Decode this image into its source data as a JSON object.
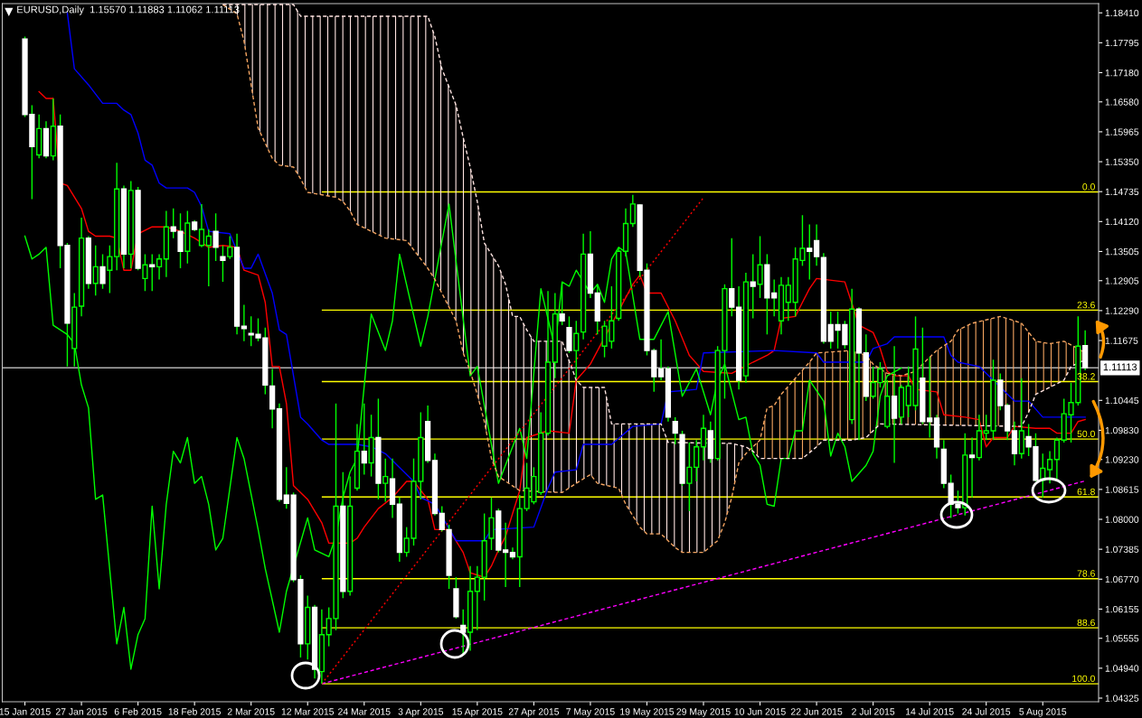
{
  "chart_data": {
    "type": "candlestick",
    "title": "EURUSD,Daily  1.15570 1.11883 1.11062 1.11113",
    "categories": [
      "15 Jan 2015",
      null,
      null,
      null,
      null,
      null,
      null,
      null,
      "27 Jan 2015",
      null,
      null,
      null,
      null,
      null,
      null,
      null,
      "6 Feb 2015",
      null,
      null,
      null,
      null,
      null,
      null,
      null,
      "18 Feb 2015",
      null,
      null,
      null,
      null,
      null,
      null,
      null,
      "2 Mar 2015",
      null,
      null,
      null,
      null,
      null,
      null,
      null,
      "12 Mar 2015",
      null,
      null,
      null,
      null,
      null,
      null,
      null,
      "24 Mar 2015",
      null,
      null,
      null,
      null,
      null,
      null,
      null,
      "3 Apr 2015",
      null,
      null,
      null,
      null,
      null,
      null,
      null,
      "15 Apr 2015",
      null,
      null,
      null,
      null,
      null,
      null,
      null,
      "27 Apr 2015",
      null,
      null,
      null,
      null,
      null,
      null,
      null,
      "7 May 2015",
      null,
      null,
      null,
      null,
      null,
      null,
      null,
      "19 May 2015",
      null,
      null,
      null,
      null,
      null,
      null,
      null,
      "29 May 2015",
      null,
      null,
      null,
      null,
      null,
      null,
      null,
      "10 Jun 2015",
      null,
      null,
      null,
      null,
      null,
      null,
      null,
      "22 Jun 2015",
      null,
      null,
      null,
      null,
      null,
      null,
      null,
      "2 Jul 2015",
      null,
      null,
      null,
      null,
      null,
      null,
      null,
      "14 Jul 2015",
      null,
      null,
      null,
      null,
      null,
      null,
      null,
      "24 Jul 2015",
      null,
      null,
      null,
      null,
      null,
      null,
      null,
      "5 Aug 2015",
      null,
      null,
      null,
      null,
      null,
      null
    ],
    "ohlc": [
      [
        1.1787,
        1.1792,
        1.1627,
        1.1632
      ],
      [
        1.1632,
        1.1651,
        1.1458,
        1.1566
      ],
      [
        1.1549,
        1.1632,
        1.1542,
        1.1603
      ],
      [
        1.1603,
        1.1618,
        1.1542,
        1.1547
      ],
      [
        1.1547,
        1.1665,
        1.1538,
        1.1608
      ],
      [
        1.1608,
        1.1632,
        1.1316,
        1.1363
      ],
      [
        1.1363,
        1.1368,
        1.1114,
        1.1203
      ],
      [
        1.1151,
        1.1265,
        1.1114,
        1.1236
      ],
      [
        1.1238,
        1.142,
        1.1217,
        1.1378
      ],
      [
        1.1378,
        1.1382,
        1.1274,
        1.1285
      ],
      [
        1.1285,
        1.1363,
        1.126,
        1.1319
      ],
      [
        1.1319,
        1.1345,
        1.1274,
        1.1285
      ],
      [
        1.1312,
        1.1363,
        1.1265,
        1.134
      ],
      [
        1.134,
        1.1533,
        1.1312,
        1.1479
      ],
      [
        1.1479,
        1.1486,
        1.1316,
        1.1345
      ],
      [
        1.1345,
        1.1495,
        1.1316,
        1.1476
      ],
      [
        1.1476,
        1.1483,
        1.1312,
        1.1316
      ],
      [
        1.1295,
        1.1345,
        1.1269,
        1.1323
      ],
      [
        1.1323,
        1.1345,
        1.1269,
        1.1319
      ],
      [
        1.1319,
        1.1345,
        1.1293,
        1.1335
      ],
      [
        1.1335,
        1.1434,
        1.1298,
        1.1401
      ],
      [
        1.1401,
        1.1439,
        1.1378,
        1.1392
      ],
      [
        1.1392,
        1.1429,
        1.1316,
        1.1351
      ],
      [
        1.1351,
        1.1434,
        1.1326,
        1.1409
      ],
      [
        1.1411,
        1.1415,
        1.1392,
        1.1396
      ],
      [
        1.1363,
        1.1448,
        1.1359,
        1.1396
      ],
      [
        1.1363,
        1.1396,
        1.1279,
        1.1382
      ],
      [
        1.1392,
        1.1429,
        1.1331,
        1.1359
      ],
      [
        1.134,
        1.1363,
        1.1288,
        1.1332
      ],
      [
        1.134,
        1.1382,
        1.1335,
        1.1359
      ],
      [
        1.1359,
        1.1387,
        1.118,
        1.1197
      ],
      [
        1.1197,
        1.1241,
        1.1166,
        1.1192
      ],
      [
        1.1182,
        1.1217,
        1.1156,
        1.1179
      ],
      [
        1.118,
        1.1213,
        1.1166,
        1.1173
      ],
      [
        1.1173,
        1.1194,
        1.1057,
        1.1076
      ],
      [
        1.1074,
        1.1109,
        1.0987,
        1.1027
      ],
      [
        1.1027,
        1.1038,
        1.0836,
        1.0841
      ],
      [
        1.085,
        1.0907,
        1.0822,
        1.0833
      ],
      [
        1.085,
        1.0855,
        1.0671,
        1.0676
      ],
      [
        1.0676,
        1.0685,
        1.0516,
        1.0544
      ],
      [
        1.0544,
        1.0643,
        1.0512,
        1.0619
      ],
      [
        1.0619,
        1.0624,
        1.0473,
        1.0492
      ],
      [
        1.0487,
        1.0615,
        1.0462,
        1.0563
      ],
      [
        1.0563,
        1.0619,
        1.0539,
        1.0596
      ],
      [
        1.0596,
        1.1038,
        1.0572,
        1.0827
      ],
      [
        1.0827,
        1.0897,
        1.0638,
        1.0652
      ],
      [
        1.0652,
        1.0888,
        1.0643,
        1.0827
      ],
      [
        1.0864,
        1.0996,
        1.0859,
        1.094
      ],
      [
        1.094,
        1.1038,
        1.0892,
        1.0916
      ],
      [
        1.0916,
        1.1015,
        1.0888,
        1.0968
      ],
      [
        1.0968,
        1.1048,
        1.0841,
        1.0874
      ],
      [
        1.0874,
        1.0925,
        1.0836,
        1.0888
      ],
      [
        1.0883,
        1.0925,
        1.0803,
        1.0831
      ],
      [
        1.0831,
        1.0845,
        1.0713,
        1.0732
      ],
      [
        1.0732,
        1.0784,
        1.0723,
        1.0761
      ],
      [
        1.0761,
        1.0925,
        1.0746,
        1.0878
      ],
      [
        1.0878,
        1.102,
        1.0841,
        1.0968
      ],
      [
        1.1001,
        1.1034,
        1.0916,
        1.0921
      ],
      [
        1.0921,
        1.0935,
        1.0808,
        1.0812
      ],
      [
        1.0812,
        1.0827,
        1.0775,
        1.0779
      ],
      [
        1.0779,
        1.0789,
        1.0657,
        1.0685
      ],
      [
        1.0657,
        1.0681,
        1.0596,
        1.06
      ],
      [
        1.0582,
        1.0615,
        1.052,
        1.0568
      ],
      [
        1.0568,
        1.0704,
        1.053,
        1.0652
      ],
      [
        1.0652,
        1.0704,
        1.0572,
        1.0681
      ],
      [
        1.0681,
        1.0812,
        1.0633,
        1.0756
      ],
      [
        1.0761,
        1.0845,
        1.0737,
        1.0803
      ],
      [
        1.0817,
        1.0822,
        1.0732,
        1.0737
      ],
      [
        1.0737,
        1.0793,
        1.0661,
        1.0732
      ],
      [
        1.0732,
        1.0742,
        1.0718,
        1.0723
      ],
      [
        1.0723,
        1.085,
        1.0661,
        1.0822
      ],
      [
        1.0822,
        1.0916,
        1.0817,
        1.0864
      ],
      [
        1.0836,
        1.0907,
        1.0831,
        1.0888
      ],
      [
        1.0855,
        1.102,
        1.085,
        1.0977
      ],
      [
        1.0977,
        1.1269,
        1.0972,
        1.1123
      ],
      [
        1.1123,
        1.1265,
        1.109,
        1.1222
      ],
      [
        1.1222,
        1.1288,
        1.1199,
        1.1208
      ],
      [
        1.1194,
        1.1217,
        1.1142,
        1.1147
      ],
      [
        1.1147,
        1.1208,
        1.109,
        1.1182
      ],
      [
        1.1185,
        1.1387,
        1.117,
        1.1345
      ],
      [
        1.1345,
        1.1392,
        1.1255,
        1.1265
      ],
      [
        1.1265,
        1.1283,
        1.118,
        1.1208
      ],
      [
        1.1156,
        1.1208,
        1.1133,
        1.1197
      ],
      [
        1.1166,
        1.1279,
        1.1151,
        1.1208
      ],
      [
        1.1213,
        1.1359,
        1.1208,
        1.1351
      ],
      [
        1.1351,
        1.1439,
        1.134,
        1.1408
      ],
      [
        1.1408,
        1.1467,
        1.1401,
        1.1448
      ],
      [
        1.1446,
        1.1448,
        1.1298,
        1.1312
      ],
      [
        1.1312,
        1.1326,
        1.1137,
        1.1147
      ],
      [
        1.1147,
        1.1151,
        1.1062,
        1.1093
      ],
      [
        1.1109,
        1.117,
        1.1086,
        1.1093
      ],
      [
        1.1109,
        1.1114,
        1.1001,
        1.101
      ],
      [
        1.1001,
        1.101,
        1.0954,
        1.0977
      ],
      [
        1.0974,
        1.0982,
        1.0869,
        1.0874
      ],
      [
        1.0874,
        1.0958,
        1.0817,
        1.0907
      ],
      [
        1.0907,
        1.0963,
        1.0878,
        1.0949
      ],
      [
        1.0949,
        1.1015,
        1.0921,
        1.0987
      ],
      [
        1.0982,
        1.1001,
        1.0916,
        1.0925
      ],
      [
        1.0925,
        1.1156,
        1.0921,
        1.1147
      ],
      [
        1.1147,
        1.1283,
        1.1048,
        1.1274
      ],
      [
        1.1274,
        1.1378,
        1.1217,
        1.1236
      ],
      [
        1.1236,
        1.1279,
        1.1067,
        1.1086
      ],
      [
        1.1095,
        1.1307,
        1.1081,
        1.1288
      ],
      [
        1.1288,
        1.1345,
        1.1213,
        1.1279
      ],
      [
        1.1283,
        1.1382,
        1.1255,
        1.1323
      ],
      [
        1.1323,
        1.1345,
        1.118,
        1.1255
      ],
      [
        1.1265,
        1.1293,
        1.1217,
        1.1255
      ],
      [
        1.1208,
        1.1298,
        1.118,
        1.1281
      ],
      [
        1.1246,
        1.1298,
        1.1208,
        1.1281
      ],
      [
        1.1246,
        1.1359,
        1.1217,
        1.1335
      ],
      [
        1.1332,
        1.1425,
        1.1321,
        1.1357
      ],
      [
        1.1357,
        1.1406,
        1.1293,
        1.1351
      ],
      [
        1.1373,
        1.1406,
        1.1321,
        1.134
      ],
      [
        1.1338,
        1.1347,
        1.1161,
        1.1166
      ],
      [
        1.12,
        1.1227,
        1.1151,
        1.1166
      ],
      [
        1.12,
        1.1227,
        1.1151,
        1.1189
      ],
      [
        1.12,
        1.1208,
        1.1151,
        1.1159
      ],
      [
        1.1005,
        1.1274,
        1.0996,
        1.1232
      ],
      [
        1.1232,
        1.1236,
        1.0963,
        1.1142
      ],
      [
        1.1142,
        1.118,
        1.1043,
        1.1053
      ],
      [
        1.1053,
        1.1114,
        1.1048,
        1.1081
      ],
      [
        1.1081,
        1.1123,
        1.1071,
        1.1109
      ],
      [
        1.0991,
        1.1086,
        1.0987,
        1.1053
      ],
      [
        1.1053,
        1.1156,
        1.0916,
        1.1008
      ],
      [
        1.101,
        1.1076,
        1.0996,
        1.1071
      ],
      [
        1.1034,
        1.1114,
        1.101,
        1.1074
      ],
      [
        1.1034,
        1.1217,
        1.1024,
        1.115
      ],
      [
        1.109,
        1.1194,
        1.0996,
        1.1001
      ],
      [
        1.1008,
        1.1133,
        1.0968,
        1.1001
      ],
      [
        1.1008,
        1.1015,
        1.0925,
        1.0949
      ],
      [
        1.0944,
        1.0963,
        1.0864,
        1.0874
      ],
      [
        1.0874,
        1.0892,
        1.0803,
        1.0831
      ],
      [
        1.0831,
        1.0859,
        1.0812,
        1.0824
      ],
      [
        1.0824,
        1.0977,
        1.0808,
        1.0932
      ],
      [
        1.0932,
        1.0968,
        1.0845,
        1.0927
      ],
      [
        1.0927,
        1.1015,
        1.0921,
        1.0982
      ],
      [
        1.0977,
        1.1015,
        1.0963,
        1.0982
      ],
      [
        1.0982,
        1.1128,
        1.0963,
        1.1086
      ],
      [
        1.1086,
        1.11,
        1.1024,
        1.1034
      ],
      [
        1.1034,
        1.1038,
        1.0963,
        1.0982
      ],
      [
        1.0982,
        1.1001,
        1.0911,
        1.0935
      ],
      [
        1.0935,
        1.109,
        1.0925,
        1.0982
      ],
      [
        1.097,
        1.0996,
        1.093,
        1.0949
      ],
      [
        1.0949,
        1.0977,
        1.0878,
        1.088
      ],
      [
        1.088,
        1.0935,
        1.0845,
        1.0905
      ],
      [
        1.0902,
        1.094,
        1.0874,
        1.0923
      ],
      [
        1.0923,
        1.0968,
        1.0883,
        1.0963
      ],
      [
        1.0963,
        1.1048,
        1.0958,
        1.1017
      ],
      [
        1.1015,
        1.1081,
        1.0958,
        1.104
      ],
      [
        1.104,
        1.1217,
        1.1034,
        1.1156
      ],
      [
        1.1157,
        1.11883,
        1.11062,
        1.11113
      ]
    ],
    "ylim": [
      1.0425,
      1.186
    ],
    "yticks": [
      {
        "value": 1.1841,
        "label": "1.18410"
      },
      {
        "value": 1.17795,
        "label": "1.17795"
      },
      {
        "value": 1.1718,
        "label": "1.17180"
      },
      {
        "value": 1.1658,
        "label": "1.16580"
      },
      {
        "value": 1.15965,
        "label": "1.15965"
      },
      {
        "value": 1.1535,
        "label": "1.15350"
      },
      {
        "value": 1.14735,
        "label": "1.14735"
      },
      {
        "value": 1.1412,
        "label": "1.14120"
      },
      {
        "value": 1.13505,
        "label": "1.13505"
      },
      {
        "value": 1.12905,
        "label": "1.12905"
      },
      {
        "value": 1.1229,
        "label": "1.12290"
      },
      {
        "value": 1.11675,
        "label": "1.11675"
      },
      {
        "value": 1.10445,
        "label": "1.10445"
      },
      {
        "value": 1.0983,
        "label": "1.09830"
      },
      {
        "value": 1.0923,
        "label": "1.09230"
      },
      {
        "value": 1.08615,
        "label": "1.08615"
      },
      {
        "value": 1.08,
        "label": "1.08000"
      },
      {
        "value": 1.07385,
        "label": "1.07385"
      },
      {
        "value": 1.0677,
        "label": "1.06770"
      },
      {
        "value": 1.06155,
        "label": "1.06155"
      },
      {
        "value": 1.05555,
        "label": "1.05555"
      },
      {
        "value": 1.0494,
        "label": "1.04940"
      },
      {
        "value": 1.04325,
        "label": "1.04325"
      }
    ],
    "series": [
      {
        "type": "line",
        "color": "#ff0000",
        "values": [
          null,
          null,
          1.1679,
          1.1665,
          1.1665,
          1.1491,
          1.1486,
          null,
          1.1439,
          1.1392,
          1.1382,
          null,
          1.1382,
          1.1378,
          1.1312,
          1.1312,
          1.1387,
          null,
          1.1401,
          null,
          1.1401,
          null,
          1.1392,
          null,
          1.1378,
          null,
          1.1359,
          null,
          1.1363,
          null,
          1.1359,
          1.1312,
          null,
          1.1302,
          1.1246,
          1.1114,
          1.1114,
          1.1038,
          1.0869,
          null,
          1.0841,
          null,
          1.0793,
          1.0751,
          null,
          null,
          1.0751,
          1.0761,
          1.0784,
          1.0803,
          1.0822,
          null,
          1.0845,
          null,
          1.0878,
          1.0878,
          null,
          1.0841,
          1.0779,
          null,
          1.0779,
          null,
          1.0732,
          1.069,
          null,
          1.0681,
          1.0704,
          1.0737,
          1.0765,
          1.0812,
          1.0859,
          1.0968,
          null,
          null,
          1.0982,
          null,
          null,
          1.0977,
          1.1086,
          null,
          1.1119,
          null,
          null,
          null,
          null,
          null,
          1.1283,
          1.1302,
          1.1265,
          null,
          1.1265,
          null,
          1.1208,
          null,
          1.1137,
          null,
          1.1104,
          null,
          null,
          null,
          1.11,
          null,
          null,
          1.1123,
          null,
          1.1137,
          1.1147,
          1.1213,
          null,
          1.1217,
          1.1246,
          1.1274,
          1.1295,
          null,
          null,
          null,
          1.1288,
          null,
          1.1199,
          null,
          1.1184,
          1.1151,
          1.1104,
          1.1095,
          null,
          1.1095,
          1.1067,
          null,
          null,
          1.1062,
          1.1015,
          null,
          null,
          1.101,
          null,
          1.1005,
          1.0949,
          1.0968,
          null,
          1.0968,
          1.0991,
          null,
          null,
          1.0987,
          null,
          1.0987,
          1.0977,
          null,
          1.0977,
          1.1001,
          1.1005
        ]
      },
      {
        "type": "line",
        "color": "#0000ff",
        "values": [
          null,
          null,
          null,
          null,
          null,
          null,
          1.1841,
          1.1726,
          null,
          1.1693,
          null,
          1.1655,
          null,
          1.1655,
          1.1641,
          1.1632,
          1.1594,
          1.1538,
          1.1528,
          1.1491,
          1.1481,
          null,
          null,
          1.1481,
          1.1472,
          1.1443,
          1.1392,
          null,
          null,
          1.1387,
          null,
          1.1316,
          1.1316,
          1.1345,
          null,
          1.1265,
          1.1189,
          1.118,
          null,
          1.101,
          1.0996,
          null,
          1.0963,
          1.0954,
          null,
          null,
          null,
          1.0954,
          null,
          1.0949,
          null,
          1.0935,
          null,
          null,
          null,
          1.0878,
          1.0845,
          null,
          1.0831,
          null,
          null,
          1.0756,
          null,
          null,
          null,
          1.0756,
          1.0779,
          null,
          null,
          null,
          null,
          null,
          1.0784,
          null,
          1.0864,
          1.0897,
          null,
          null,
          1.0902,
          1.0954,
          null,
          null,
          null,
          1.0954,
          null,
          null,
          1.0991,
          null,
          null,
          null,
          1.0996,
          1.1062,
          null,
          null,
          null,
          1.1067,
          1.1142,
          null,
          null,
          null,
          null,
          null,
          null,
          null,
          null,
          null,
          1.1147,
          null,
          null,
          null,
          null,
          null,
          1.1142,
          1.1123,
          null,
          null,
          null,
          null,
          null,
          1.1123,
          1.1151,
          null,
          1.1161,
          1.1175,
          null,
          null,
          null,
          null,
          null,
          null,
          1.1175,
          1.1137,
          1.1123,
          null,
          null,
          1.1114,
          null,
          null,
          null,
          null,
          1.1043,
          null,
          1.1043,
          null,
          1.101,
          null,
          null,
          null,
          null,
          null,
          1.101
        ]
      },
      {
        "type": "line",
        "color": "#00ff00",
        "values": [
          1.1382,
          1.1335,
          1.1345,
          1.1359,
          1.1199,
          null,
          1.118,
          1.1161,
          1.1076,
          1.1029,
          1.0841,
          1.085,
          null,
          1.0544,
          1.0619,
          1.0492,
          1.0563,
          1.0596,
          1.0827,
          1.0657,
          1.0831,
          1.094,
          1.0916,
          1.0968,
          1.0874,
          1.0888,
          1.0831,
          1.0737,
          1.0761,
          null,
          1.0968,
          1.0925,
          null,
          1.0779,
          1.0699,
          null,
          1.0568,
          1.0652,
          null,
          null,
          1.0803,
          1.0737,
          null,
          1.0723,
          1.0765,
          1.0845,
          1.0897,
          1.0925,
          null,
          1.1222,
          null,
          1.1147,
          1.1208,
          1.1345,
          null,
          null,
          1.1156,
          1.1217,
          null,
          null,
          1.1448,
          null,
          null,
          1.1095,
          1.1114,
          null,
          null,
          1.0874,
          null,
          null,
          1.0987,
          1.0925,
          null,
          1.1274,
          null,
          1.1151,
          1.1288,
          1.1279,
          1.1312,
          null,
          1.1265,
          1.1283,
          1.1246,
          1.1335,
          1.1359,
          1.1349,
          null,
          1.117,
          null,
          1.117,
          null,
          1.1227,
          null,
          1.1053,
          null,
          1.1109,
          null,
          1.1015,
          1.1086,
          1.1119,
          null,
          1.1005,
          1.101,
          1.0935,
          1.0911,
          1.0831,
          1.0827,
          1.0925,
          1.0925,
          1.0982,
          1.0982,
          1.1086,
          null,
          1.1043,
          1.093,
          1.0977,
          1.0949,
          1.0878,
          null,
          1.0911,
          1.094,
          1.1053,
          1.1095,
          null,
          1.1111,
          null,
          null,
          null,
          null,
          null,
          null,
          null,
          null,
          null,
          null,
          null,
          null,
          null,
          null,
          null,
          null,
          null,
          null,
          null,
          null,
          null,
          null,
          null,
          null,
          null,
          null
        ]
      },
      {
        "type": "line",
        "color": "#f4a460",
        "line_style": "dashed",
        "values": [
          null,
          null,
          null,
          null,
          null,
          null,
          null,
          null,
          null,
          null,
          null,
          null,
          null,
          null,
          null,
          null,
          null,
          null,
          null,
          null,
          null,
          null,
          null,
          null,
          null,
          null,
          null,
          null,
          1.1858,
          null,
          1.1839,
          1.1783,
          1.1693,
          1.1604,
          null,
          1.1542,
          1.1528,
          null,
          1.1524,
          1.15,
          1.1472,
          null,
          null,
          null,
          1.1462,
          1.1453,
          1.1434,
          1.1406,
          null,
          1.1392,
          null,
          1.1378,
          null,
          null,
          1.1373,
          null,
          null,
          1.1316,
          1.1293,
          null,
          null,
          1.1208,
          1.1142,
          1.1104,
          1.1057,
          1.1001,
          1.0925,
          1.0888,
          null,
          null,
          1.0859,
          null,
          null,
          null,
          null,
          null,
          1.0855,
          null,
          1.0874,
          null,
          1.0892,
          1.0874,
          null,
          null,
          1.0864,
          1.0831,
          null,
          1.0784,
          1.077,
          null,
          1.077,
          null,
          1.0742,
          1.0732,
          null,
          null,
          1.0732,
          null,
          1.0756,
          1.0793,
          1.0845,
          1.0916,
          1.0935,
          1.0949,
          1.0963,
          1.1029,
          1.1034,
          1.1057,
          null,
          1.109,
          null,
          1.1123,
          1.1142,
          null,
          null,
          null,
          null,
          1.1147,
          null,
          1.1137,
          1.1119,
          1.1109,
          1.11,
          null,
          1.1095,
          null,
          1.1104,
          1.1119,
          null,
          1.1147,
          null,
          1.1166,
          1.1189,
          null,
          1.1203,
          null,
          null,
          null,
          1.1217,
          null,
          1.1208,
          1.1203,
          null,
          1.1166,
          null,
          1.1161,
          null,
          1.1166,
          null,
          1.1151,
          1.1142
        ]
      },
      {
        "type": "line",
        "color": "#ffe4e1",
        "line_style": "dashed",
        "values": [
          null,
          null,
          null,
          null,
          null,
          null,
          null,
          null,
          null,
          null,
          null,
          null,
          null,
          null,
          null,
          null,
          null,
          null,
          null,
          null,
          null,
          null,
          null,
          null,
          null,
          null,
          null,
          null,
          1.1858,
          null,
          null,
          null,
          null,
          null,
          null,
          null,
          null,
          null,
          1.1858,
          1.1834,
          null,
          null,
          null,
          null,
          null,
          null,
          null,
          null,
          null,
          null,
          null,
          null,
          null,
          null,
          null,
          null,
          null,
          1.1834,
          1.1792,
          1.1726,
          null,
          1.1651,
          1.1585,
          1.1524,
          1.1453,
          1.1368,
          null,
          1.1321,
          1.1283,
          1.1217,
          1.1217,
          1.1189,
          1.1166,
          null,
          null,
          null,
          1.1166,
          null,
          1.1086,
          1.1071,
          null,
          null,
          1.1071,
          1.0996,
          null,
          null,
          null,
          null,
          null,
          null,
          1.0996,
          1.0958,
          null,
          null,
          null,
          null,
          null,
          null,
          null,
          null,
          1.0956,
          null,
          1.0949,
          1.094,
          1.0925,
          null,
          null,
          null,
          null,
          null,
          1.0925,
          null,
          1.0949,
          1.0963,
          null,
          null,
          null,
          1.0963,
          null,
          1.0968,
          1.0982,
          1.0996,
          null,
          null,
          null,
          null,
          null,
          null,
          null,
          null,
          null,
          null,
          null,
          null,
          null,
          null,
          null,
          null,
          null,
          null,
          null,
          1.0991,
          1.102,
          1.1057,
          null,
          null,
          null,
          1.1086,
          1.1114,
          null,
          1.1128
        ]
      },
      {
        "type": "line",
        "color": "#ff00ff",
        "line_style": "dashed",
        "values": [
          null,
          null,
          null,
          null,
          null,
          null,
          null,
          null,
          null,
          null,
          null,
          null,
          null,
          null,
          null,
          null,
          null,
          null,
          null,
          null,
          null,
          null,
          null,
          null,
          null,
          null,
          null,
          null,
          null,
          null,
          null,
          null,
          null,
          null,
          null,
          null,
          null,
          null,
          null,
          null,
          null,
          null,
          1.0462,
          null,
          null,
          null,
          null,
          null,
          null,
          null,
          null,
          null,
          null,
          null,
          null,
          null,
          null,
          null,
          null,
          null,
          null,
          null,
          null,
          null,
          null,
          null,
          null,
          null,
          null,
          null,
          null,
          null,
          null,
          null,
          null,
          null,
          null,
          null,
          null,
          null,
          null,
          null,
          null,
          null,
          null,
          null,
          null,
          null,
          null,
          null,
          null,
          null,
          null,
          null,
          null,
          null,
          null,
          null,
          null,
          null,
          null,
          null,
          null,
          null,
          null,
          null,
          null,
          null,
          null,
          null,
          null,
          null,
          null,
          null,
          null,
          null,
          null,
          null,
          null,
          null,
          null,
          null,
          null,
          null,
          null,
          null,
          null,
          null,
          null,
          null,
          null,
          null,
          null,
          null,
          null,
          null,
          null,
          null,
          null,
          null,
          null,
          null,
          null,
          null,
          null,
          null,
          null,
          null,
          null,
          null,
          1.0879
        ]
      },
      {
        "type": "line",
        "color": "#ff0000",
        "line_style": "dotted",
        "values": [
          null,
          null,
          null,
          null,
          null,
          null,
          null,
          null,
          null,
          null,
          null,
          null,
          null,
          null,
          null,
          null,
          null,
          null,
          null,
          null,
          null,
          null,
          null,
          null,
          null,
          null,
          null,
          null,
          null,
          null,
          null,
          null,
          null,
          null,
          null,
          null,
          null,
          null,
          null,
          null,
          null,
          null,
          1.0462,
          null,
          null,
          null,
          null,
          null,
          null,
          null,
          null,
          null,
          null,
          null,
          null,
          null,
          null,
          null,
          null,
          null,
          null,
          null,
          null,
          null,
          null,
          null,
          null,
          null,
          null,
          null,
          null,
          null,
          null,
          null,
          null,
          null,
          null,
          null,
          null,
          null,
          null,
          null,
          null,
          null,
          null,
          null,
          null,
          null,
          null,
          null,
          null,
          null,
          null,
          null,
          null,
          null,
          1.1461,
          null,
          null,
          null,
          null,
          null,
          null,
          null,
          null,
          null,
          null,
          null,
          null,
          null,
          null,
          null,
          null,
          null,
          null,
          null,
          null,
          null,
          null,
          null,
          null,
          null,
          null,
          null,
          null,
          null,
          null,
          null,
          null,
          null,
          null,
          null,
          null,
          null,
          null,
          null,
          null,
          null,
          null,
          null,
          null,
          null,
          null,
          null,
          null,
          null,
          null,
          null,
          null,
          null,
          null
        ]
      }
    ],
    "ref_lines": [
      {
        "axis": "y",
        "value": 1.1473,
        "color": "#ffff00"
      },
      {
        "axis": "y",
        "value": 1.123,
        "color": "#ffff00"
      },
      {
        "axis": "y",
        "value": 1.1083,
        "color": "#ffff00"
      },
      {
        "axis": "y",
        "value": 1.0965,
        "color": "#ffff00"
      },
      {
        "axis": "y",
        "value": 1.0846,
        "color": "#ffff00"
      },
      {
        "axis": "y",
        "value": 1.0678,
        "color": "#ffff00"
      },
      {
        "axis": "y",
        "value": 1.0577,
        "color": "#ffff00"
      },
      {
        "axis": "y",
        "value": 1.0462,
        "color": "#ffff00"
      },
      {
        "axis": "y",
        "value": 1.11113,
        "label": "1.11113",
        "color": "#b0b0b0"
      }
    ],
    "annotations": [
      {
        "text": "0.0",
        "y": 1.1473
      },
      {
        "text": "23.6",
        "y": 1.123
      },
      {
        "text": "38.2",
        "y": 1.1083
      },
      {
        "text": "50.0",
        "y": 1.0965
      },
      {
        "text": "61.8",
        "y": 1.0846
      },
      {
        "text": "78.6",
        "y": 1.0678
      },
      {
        "text": "88.6",
        "y": 1.0577
      },
      {
        "text": "100.0",
        "y": 1.0462
      }
    ]
  }
}
